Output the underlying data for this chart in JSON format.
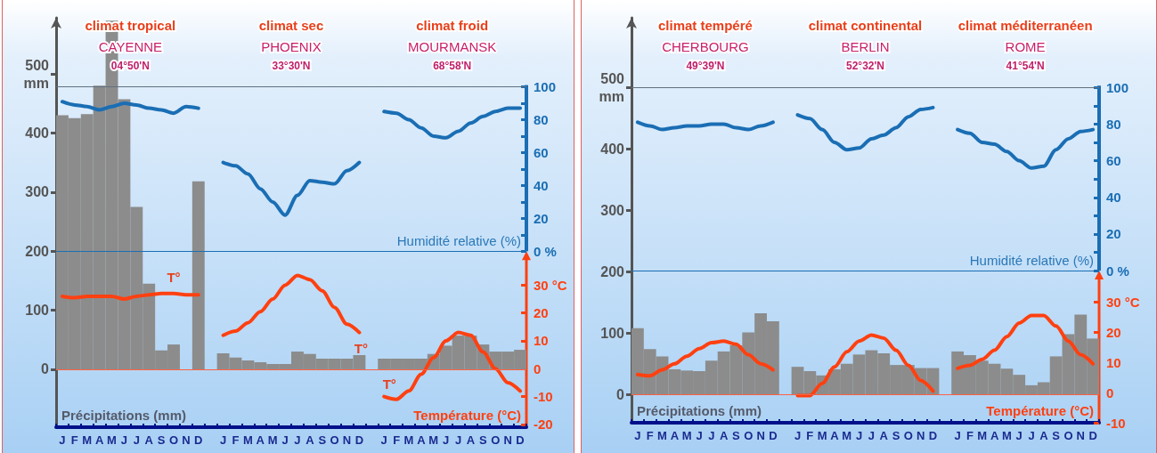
{
  "chart_data": [
    {
      "type": "bar",
      "categories": [
        "J",
        "F",
        "M",
        "A",
        "M",
        "J",
        "J",
        "A",
        "S",
        "O",
        "N",
        "D",
        null,
        "J",
        "F",
        "M",
        "A",
        "M",
        "J",
        "J",
        "A",
        "S",
        "O",
        "N",
        "D",
        null,
        "J",
        "F",
        "M",
        "A",
        "M",
        "J",
        "J",
        "A",
        "S",
        "O",
        "N",
        "D"
      ],
      "series": [
        {
          "color": "#8c8c8c",
          "values": [
            430,
            425,
            432,
            480,
            590,
            457,
            275,
            145,
            32,
            42,
            null,
            318,
            null,
            27,
            20,
            15,
            12,
            9,
            9,
            30,
            26,
            18,
            18,
            18,
            24,
            null,
            18,
            18,
            18,
            18,
            26,
            40,
            57,
            57,
            42,
            30,
            30,
            33
          ]
        },
        {
          "type": "line",
          "axis": "y2",
          "color": "#1a6eb4",
          "values": [
            91,
            89,
            88,
            86,
            88,
            90,
            89,
            87,
            86,
            84,
            88,
            87,
            null,
            54,
            52,
            47,
            38,
            30,
            22,
            34,
            43,
            42,
            41,
            49,
            54,
            null,
            85,
            84,
            80,
            75,
            70,
            69,
            73,
            78,
            82,
            85,
            87,
            87
          ]
        },
        {
          "type": "line",
          "axis": "y3",
          "color": "#ff4010",
          "values": [
            26,
            25.5,
            26,
            26,
            26,
            25,
            26,
            26.5,
            27,
            27,
            26.5,
            26.5,
            null,
            12,
            13.5,
            16.5,
            20.5,
            25,
            30,
            33.5,
            32,
            28,
            22,
            16,
            13,
            null,
            -10,
            -11,
            -8,
            -2,
            4,
            10,
            13,
            12,
            6,
            0,
            -5,
            -8
          ]
        }
      ],
      "marker": "none",
      "ylim": [
        -98,
        595
      ],
      "yticks": [
        0,
        100,
        200,
        300,
        400,
        {
          "value": 500,
          "label": "500\nmm"
        }
      ],
      "y2lim": [
        -107,
        142
      ],
      "y2ticks": [
        {
          "value": 0,
          "label": "0 %"
        },
        {
          "value": 10,
          "label": null
        },
        20,
        {
          "value": 30,
          "label": null
        },
        40,
        {
          "value": 50,
          "label": null
        },
        60,
        {
          "value": 70,
          "label": null
        },
        80,
        {
          "value": 90,
          "label": null
        },
        100
      ],
      "y3lim": [
        -21,
        126
      ],
      "y3ticks": [
        -20,
        -10,
        0,
        10,
        20,
        {
          "value": 30,
          "label": "30 °C"
        }
      ],
      "ylabel": "Précipitations (mm)",
      "y2label": "Humidité relative (%)",
      "y3label": "Température (°C)",
      "ref_lines": [
        {
          "axis": "y",
          "value": 0,
          "color": "#ff6040"
        },
        {
          "axis": "y2",
          "value": 0,
          "color": "#1a6eb4"
        },
        {
          "axis": "y2",
          "value": 100,
          "color": "#607080"
        }
      ],
      "annotations": [
        "climat tropical",
        "CAYENNE",
        "04°50'N",
        "climat sec",
        "PHOENIX",
        "33°30'N",
        "climat froid",
        "MOURMANSK",
        "68°58'N",
        "T°",
        "T°",
        "T°"
      ]
    },
    {
      "type": "bar",
      "categories": [
        "J",
        "F",
        "M",
        "A",
        "M",
        "J",
        "J",
        "A",
        "S",
        "O",
        "N",
        "D",
        null,
        "J",
        "F",
        "M",
        "A",
        "M",
        "J",
        "J",
        "A",
        "S",
        "O",
        "N",
        "D",
        null,
        "J",
        "F",
        "M",
        "A",
        "M",
        "J",
        "J",
        "A",
        "S",
        "O",
        "N",
        "D"
      ],
      "series": [
        {
          "color": "#8c8c8c",
          "values": [
            108,
            74,
            62,
            41,
            39,
            38,
            55,
            70,
            80,
            101,
            132,
            119,
            null,
            45,
            38,
            31,
            41,
            50,
            65,
            72,
            67,
            48,
            48,
            43,
            43,
            null,
            70,
            64,
            55,
            50,
            42,
            32,
            15,
            20,
            62,
            98,
            130,
            91
          ]
        },
        {
          "type": "line",
          "axis": "y2",
          "color": "#1a6eb4",
          "values": [
            81,
            79,
            77,
            78,
            79,
            79,
            80,
            80,
            78,
            77,
            79,
            81,
            null,
            85,
            83,
            77,
            70,
            66,
            67,
            72,
            74,
            78,
            84,
            88,
            89,
            null,
            77,
            75,
            70,
            69,
            65,
            60,
            56,
            57,
            66,
            72,
            76,
            77
          ]
        },
        {
          "type": "line",
          "axis": "y3",
          "color": "#ff4010",
          "values": [
            6,
            5.5,
            7.5,
            9.5,
            12,
            14.5,
            16.5,
            17,
            16,
            12.5,
            9.5,
            7.5,
            null,
            -1,
            -1,
            3,
            8.5,
            13.5,
            17,
            19,
            18,
            14,
            9,
            4,
            0.5,
            null,
            8,
            9,
            11,
            14,
            18.5,
            23,
            25.5,
            25.5,
            22,
            17,
            12.5,
            9.5
          ]
        }
      ],
      "marker": "none",
      "ylim": [
        -46,
        613
      ],
      "yticks": [
        0,
        100,
        200,
        300,
        400,
        {
          "value": 500,
          "label": "500\nmm"
        }
      ],
      "y2lim": [
        -83,
        138
      ],
      "y2ticks": [
        {
          "value": 0,
          "label": "0 %"
        },
        {
          "value": 10,
          "label": null
        },
        20,
        {
          "value": 30,
          "label": null
        },
        40,
        {
          "value": 50,
          "label": null
        },
        60,
        {
          "value": 70,
          "label": null
        },
        80,
        {
          "value": 90,
          "label": null
        },
        100
      ],
      "y3lim": [
        -10,
        124
      ],
      "y3ticks": [
        -10,
        0,
        10,
        20,
        {
          "value": 30,
          "label": "30 °C"
        }
      ],
      "ylabel": "Précipitations (mm)",
      "y2label": "Humidité relative (%)",
      "y3label": "Température (°C)",
      "ref_lines": [
        {
          "axis": "y",
          "value": 0,
          "color": "#ff6040"
        },
        {
          "axis": "y2",
          "value": 0,
          "color": "#1a6eb4"
        },
        {
          "axis": "y2",
          "value": 100,
          "color": "#607080"
        }
      ],
      "annotations": [
        "climat tempéré",
        "CHERBOURG",
        "49°39'N",
        "climat continental",
        "BERLIN",
        "52°32'N",
        "climat méditerranéen",
        "ROME",
        "41°54'N"
      ]
    }
  ]
}
